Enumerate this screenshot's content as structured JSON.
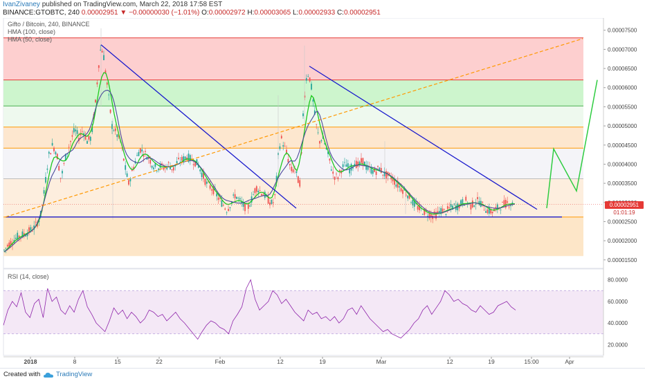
{
  "header": {
    "author": "IvanZivaney",
    "published": " published on TradingView.com, March 22, 2018 17:58 EST",
    "symbol": "BINANCE:GTOBTC, 240",
    "last": "0.00002951",
    "down_arrow": "▼",
    "change": "−0.00000030 (−1.01%)",
    "o_label": "O:",
    "o_value": "0.00002972",
    "h_label": "H:",
    "h_value": "0.00003065",
    "l_label": "L:",
    "l_value": "0.00002933",
    "c_label": "C:",
    "c_value": "0.00002951"
  },
  "legend": {
    "title": "Gifto / Bitcoin, 240, BINANCE",
    "hma100": "HMA (100, close)",
    "hma50": "HMA (50, close)",
    "rsi": "RSI (14, close)"
  },
  "price_box": {
    "value": "0.00002951",
    "timer": "01:01:19"
  },
  "footer": {
    "created": "Created with",
    "brand": "TradingView"
  },
  "colors": {
    "candle_up": "#26a69a",
    "candle_down": "#ef5350",
    "hma50": "#1ec81e",
    "hma100": "#4a4a9a",
    "trendline": "#1a1acd",
    "projection": "#2ecc40",
    "dashed_trend": "#ff9800",
    "rsi_line": "#8e24aa"
  },
  "chart_data": [
    {
      "type": "candlestick",
      "title": "Gifto / Bitcoin, 240, BINANCE",
      "price_axis": {
        "ticks": [
          "0.00007500",
          "0.00007000",
          "0.00006500",
          "0.00006000",
          "0.00005500",
          "0.00005000",
          "0.00004500",
          "0.00004000",
          "0.00003500",
          "0.00003000",
          "0.00002500",
          "0.00002000",
          "0.00001500"
        ],
        "tick_values": [
          7.5,
          7.0,
          6.5,
          6.0,
          5.5,
          5.0,
          4.5,
          4.0,
          3.5,
          3.0,
          2.5,
          2.0,
          1.5
        ],
        "unit_scale": "1e-5 BTC",
        "ylim": [
          1.28,
          7.82
        ]
      },
      "time_axis": {
        "labels": [
          "2018",
          "8",
          "15",
          "22",
          "Feb",
          "12",
          "19",
          "Mar",
          "12",
          "19",
          "15:00",
          "Apr"
        ],
        "bold": [
          "2018"
        ]
      },
      "horizontal_levels": [
        {
          "value": 7.3,
          "color": "#e53935"
        },
        {
          "value": 6.2,
          "color": "#e53935"
        },
        {
          "value": 5.52,
          "color": "#4caf50"
        },
        {
          "value": 4.97,
          "color": "#ff9800"
        },
        {
          "value": 4.42,
          "color": "#ff9800"
        },
        {
          "value": 3.62,
          "color": "#bdbdbd"
        },
        {
          "value": 2.62,
          "color": "#ff9800"
        }
      ],
      "price_path": [
        [
          0,
          1.6
        ],
        [
          12,
          1.9
        ],
        [
          25,
          2.1
        ],
        [
          38,
          2.2
        ],
        [
          50,
          2.35
        ],
        [
          58,
          2.6
        ],
        [
          62,
          3.0
        ],
        [
          66,
          3.6
        ],
        [
          70,
          4.2
        ],
        [
          76,
          4.5
        ],
        [
          82,
          4.3
        ],
        [
          88,
          3.6
        ],
        [
          95,
          4.2
        ],
        [
          102,
          4.6
        ],
        [
          108,
          4.9
        ],
        [
          114,
          4.7
        ],
        [
          120,
          4.9
        ],
        [
          126,
          4.6
        ],
        [
          132,
          4.7
        ],
        [
          138,
          5.6
        ],
        [
          142,
          6.5
        ],
        [
          146,
          7.1
        ],
        [
          150,
          6.8
        ],
        [
          154,
          6.2
        ],
        [
          158,
          5.6
        ],
        [
          162,
          5.0
        ],
        [
          168,
          4.8
        ],
        [
          174,
          4.6
        ],
        [
          178,
          4.2
        ],
        [
          182,
          3.8
        ],
        [
          186,
          3.5
        ],
        [
          190,
          3.75
        ],
        [
          196,
          4.1
        ],
        [
          202,
          4.4
        ],
        [
          208,
          4.3
        ],
        [
          214,
          4.2
        ],
        [
          220,
          4.0
        ],
        [
          226,
          3.9
        ],
        [
          232,
          3.95
        ],
        [
          238,
          3.9
        ],
        [
          244,
          4.0
        ],
        [
          250,
          3.85
        ],
        [
          256,
          4.05
        ],
        [
          262,
          4.1
        ],
        [
          270,
          4.2
        ],
        [
          278,
          4.1
        ],
        [
          286,
          4.0
        ],
        [
          292,
          3.75
        ],
        [
          298,
          3.5
        ],
        [
          304,
          3.4
        ],
        [
          310,
          3.3
        ],
        [
          316,
          3.1
        ],
        [
          322,
          2.95
        ],
        [
          328,
          2.8
        ],
        [
          334,
          3.0
        ],
        [
          340,
          3.2
        ],
        [
          346,
          3.05
        ],
        [
          352,
          2.9
        ],
        [
          358,
          2.85
        ],
        [
          364,
          3.1
        ],
        [
          370,
          3.4
        ],
        [
          376,
          3.3
        ],
        [
          382,
          3.2
        ],
        [
          388,
          3.05
        ],
        [
          394,
          2.95
        ],
        [
          398,
          3.2
        ],
        [
          402,
          4.2
        ],
        [
          406,
          4.7
        ],
        [
          410,
          4.5
        ],
        [
          414,
          4.3
        ],
        [
          418,
          4.0
        ],
        [
          422,
          3.8
        ],
        [
          426,
          3.9
        ],
        [
          430,
          3.6
        ],
        [
          434,
          3.5
        ],
        [
          438,
          5.3
        ],
        [
          442,
          6.2
        ],
        [
          446,
          6.4
        ],
        [
          450,
          6.0
        ],
        [
          454,
          5.4
        ],
        [
          458,
          4.9
        ],
        [
          462,
          4.6
        ],
        [
          466,
          4.7
        ],
        [
          470,
          4.5
        ],
        [
          476,
          4.1
        ],
        [
          482,
          3.7
        ],
        [
          488,
          3.65
        ],
        [
          494,
          3.9
        ],
        [
          500,
          4.0
        ],
        [
          506,
          3.85
        ],
        [
          512,
          4.05
        ],
        [
          518,
          3.95
        ],
        [
          524,
          4.1
        ],
        [
          530,
          3.9
        ],
        [
          536,
          3.85
        ],
        [
          542,
          3.8
        ],
        [
          548,
          3.9
        ],
        [
          554,
          3.75
        ],
        [
          560,
          3.7
        ],
        [
          566,
          3.65
        ],
        [
          572,
          3.5
        ],
        [
          578,
          3.4
        ],
        [
          584,
          3.3
        ],
        [
          590,
          3.2
        ],
        [
          596,
          3.0
        ],
        [
          602,
          2.9
        ],
        [
          608,
          2.8
        ],
        [
          614,
          2.75
        ],
        [
          620,
          2.7
        ],
        [
          626,
          2.65
        ],
        [
          632,
          2.7
        ],
        [
          638,
          2.8
        ],
        [
          644,
          2.75
        ],
        [
          650,
          2.85
        ],
        [
          656,
          2.9
        ],
        [
          662,
          2.9
        ],
        [
          668,
          3.0
        ],
        [
          674,
          3.05
        ],
        [
          680,
          2.9
        ],
        [
          686,
          3.0
        ],
        [
          692,
          3.05
        ],
        [
          698,
          2.9
        ],
        [
          704,
          2.8
        ],
        [
          710,
          2.75
        ],
        [
          716,
          2.8
        ],
        [
          722,
          2.9
        ],
        [
          728,
          2.95
        ],
        [
          734,
          3.0
        ],
        [
          740,
          2.95
        ]
      ],
      "trendlines": [
        {
          "from": [
            146,
            7.12
          ],
          "to": [
            428,
            2.85
          ],
          "color": "#1a1acd"
        },
        {
          "from": [
            447,
            6.56
          ],
          "to": [
            776,
            2.82
          ],
          "color": "#1a1acd"
        },
        {
          "from": [
            8,
            2.62
          ],
          "to": [
            812,
            2.62
          ],
          "color": "#1a1acd"
        },
        {
          "from": [
            8,
            2.62
          ],
          "to": [
            842,
            7.28
          ],
          "color": "#ff9800",
          "style": "dashed"
        }
      ],
      "projection": [
        [
          790,
          2.85
        ],
        [
          800,
          4.4
        ],
        [
          833,
          3.3
        ],
        [
          863,
          6.2
        ]
      ],
      "last_price": "0.00002951",
      "last_price_value": 2.951
    },
    {
      "type": "line",
      "title": "RSI (14, close)",
      "y_ticks": [
        "80.0000",
        "60.0000",
        "40.0000",
        "20.0000"
      ],
      "y_tick_values": [
        80,
        60,
        40,
        20
      ],
      "band": [
        30,
        70
      ],
      "ylim": [
        10,
        90
      ],
      "values": [
        38,
        52,
        60,
        55,
        68,
        50,
        45,
        58,
        62,
        45,
        72,
        60,
        64,
        52,
        48,
        56,
        50,
        62,
        70,
        55,
        48,
        40,
        36,
        32,
        42,
        54,
        48,
        52,
        44,
        50,
        46,
        40,
        44,
        52,
        50,
        46,
        48,
        42,
        46,
        50,
        44,
        40,
        35,
        30,
        25,
        32,
        38,
        42,
        40,
        36,
        34,
        30,
        42,
        48,
        55,
        72,
        80,
        62,
        52,
        56,
        60,
        70,
        66,
        58,
        62,
        56,
        50,
        46,
        42,
        52,
        48,
        50,
        44,
        46,
        42,
        46,
        40,
        44,
        52,
        54,
        48,
        56,
        50,
        44,
        40,
        36,
        32,
        34,
        30,
        28,
        26,
        30,
        34,
        40,
        44,
        52,
        56,
        48,
        54,
        60,
        70,
        66,
        60,
        62,
        58,
        56,
        52,
        50,
        56,
        52,
        48,
        50,
        56,
        58,
        60,
        55,
        52
      ],
      "x_range": [
        5,
        745
      ]
    }
  ]
}
